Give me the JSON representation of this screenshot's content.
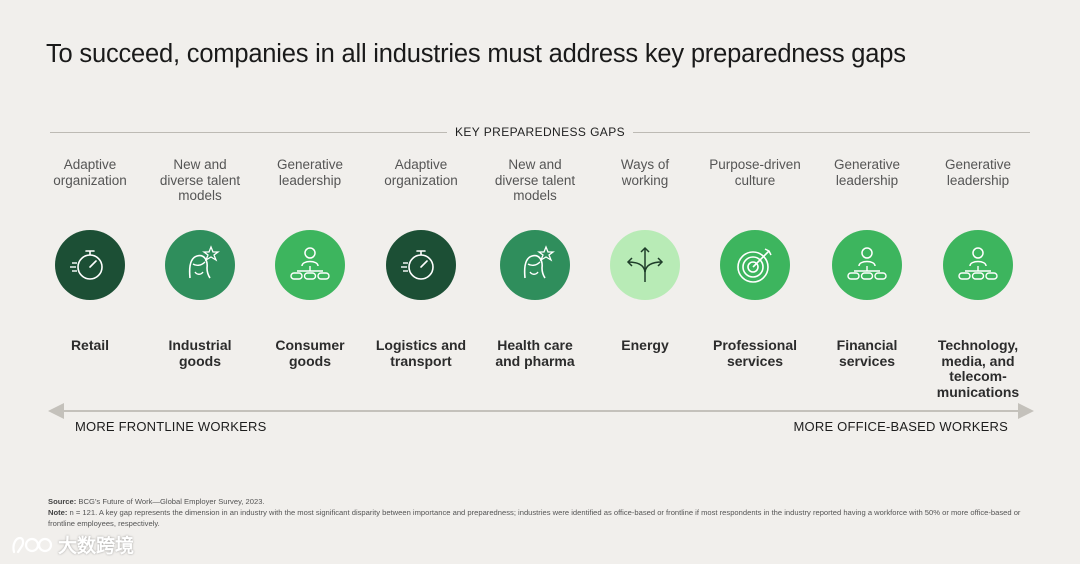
{
  "title": "To succeed, companies in all industries must address key preparedness gaps",
  "gaps_header": "KEY PREPAREDNESS GAPS",
  "colors": {
    "dark_green": "#1c4f35",
    "mid_green": "#2f8e5c",
    "bright_green": "#3db55e",
    "light_green": "#b8ebb6"
  },
  "columns": [
    {
      "gap": "Adaptive\norganization",
      "industry": "Retail",
      "icon": "stopwatch-icon",
      "color": "#1c4f35"
    },
    {
      "gap": "New and\ndiverse talent\nmodels",
      "industry": "Industrial\ngoods",
      "icon": "person-star-icon",
      "color": "#2f8e5c"
    },
    {
      "gap": "Generative\nleadership",
      "industry": "Consumer\ngoods",
      "icon": "org-chart-icon",
      "color": "#3db55e"
    },
    {
      "gap": "Adaptive\norganization",
      "industry": "Logistics and\ntransport",
      "icon": "stopwatch-icon",
      "color": "#1c4f35"
    },
    {
      "gap": "New and\ndiverse talent\nmodels",
      "industry": "Health care\nand pharma",
      "icon": "person-star-icon",
      "color": "#2f8e5c"
    },
    {
      "gap": "Ways of\nworking",
      "industry": "Energy",
      "icon": "diverging-arrows-icon",
      "color": "#b8ebb6"
    },
    {
      "gap": "Purpose-driven\nculture",
      "industry": "Professional\nservices",
      "icon": "target-icon",
      "color": "#3db55e"
    },
    {
      "gap": "Generative\nleadership",
      "industry": "Financial\nservices",
      "icon": "org-chart-icon",
      "color": "#3db55e"
    },
    {
      "gap": "Generative\nleadership",
      "industry": "Technology,\nmedia, and\ntelecom-\nmunications",
      "icon": "org-chart-icon",
      "color": "#3db55e"
    }
  ],
  "axis": {
    "left_label": "MORE FRONTLINE WORKERS",
    "right_label": "MORE OFFICE-BASED WORKERS"
  },
  "footnotes": {
    "source_label": "Source:",
    "source_text": "BCG’s Future of Work—Global Employer Survey, 2023.",
    "note_label": "Note:",
    "note_text": "n = 121. A key gap represents the dimension in an industry with the most significant disparity between importance and preparedness; industries were identified as office-based or frontline if most respondents in the industry reported having a workforce with 50% or more office-based or frontline employees, respectively."
  },
  "watermark": {
    "text": "大数跨境"
  }
}
